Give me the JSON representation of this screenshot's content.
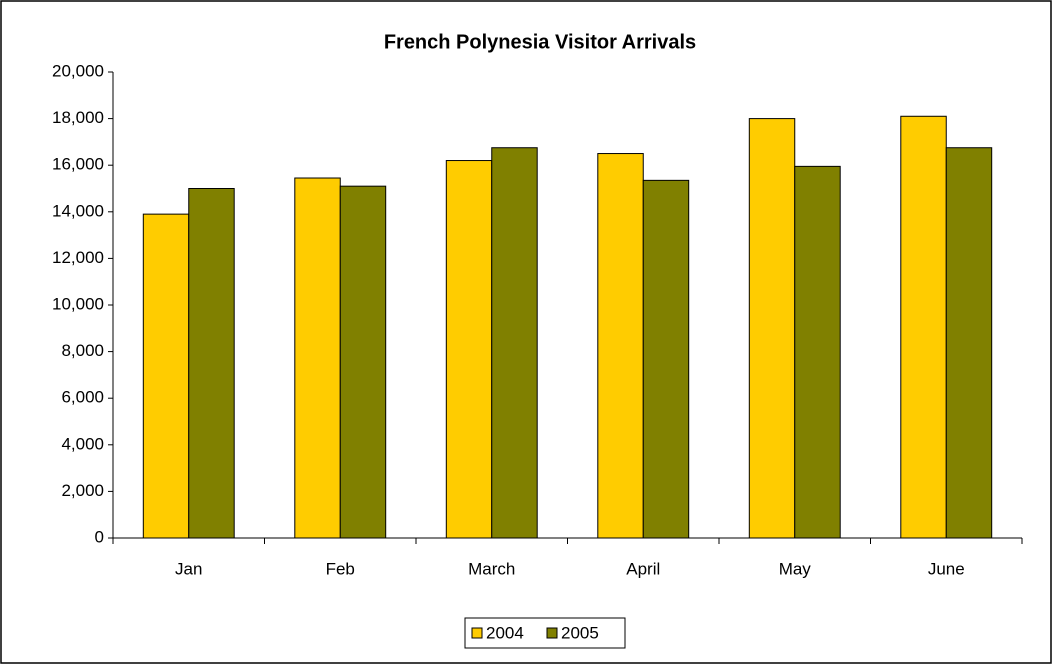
{
  "chart_data": {
    "type": "bar",
    "title": "French Polynesia Visitor Arrivals",
    "categories": [
      "Jan",
      "Feb",
      "March",
      "April",
      "May",
      "June"
    ],
    "series": [
      {
        "name": "2004",
        "color": "#ffcc00",
        "values": [
          13900,
          15450,
          16200,
          16500,
          18000,
          18100
        ]
      },
      {
        "name": "2005",
        "color": "#808000",
        "values": [
          15000,
          15100,
          16750,
          15350,
          15950,
          16750
        ]
      }
    ],
    "ylim": [
      0,
      20000
    ],
    "yticks": [
      0,
      {
        "value": 2000,
        "label": "2,000"
      },
      {
        "value": 4000,
        "label": "4,000"
      },
      {
        "value": 6000,
        "label": "6,000"
      },
      {
        "value": 8000,
        "label": "8,000"
      },
      {
        "value": 10000,
        "label": "10,000"
      },
      {
        "value": 12000,
        "label": "12,000"
      },
      {
        "value": 14000,
        "label": "14,000"
      },
      {
        "value": 16000,
        "label": "16,000"
      },
      {
        "value": 18000,
        "label": "18,000"
      },
      {
        "value": 20000,
        "label": "20,000"
      }
    ],
    "grid": false,
    "legend": "bottom"
  }
}
